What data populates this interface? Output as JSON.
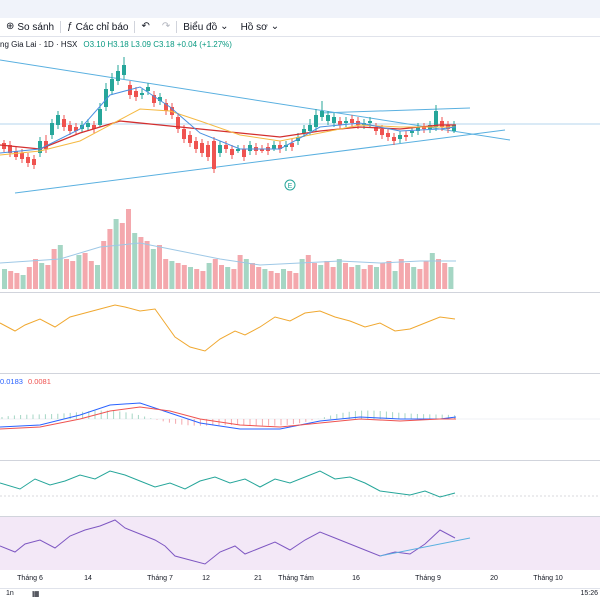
{
  "toolbar": {
    "compare_label": "So sánh",
    "indicators_label": "Các chỉ báo",
    "chart_type_label": "Biểu đồ",
    "profile_label": "Hồ sơ"
  },
  "legend": {
    "symbol": "ng Gia Lai · 1D · HSX",
    "ohlc": "O3.10 H3.18 L3.09 C3.18 +0.04 (+1.27%)"
  },
  "macd_legend": {
    "value1": "0.0183",
    "value2": "0.0081"
  },
  "x_axis_labels": [
    "Tháng 6",
    "14",
    "Tháng 7",
    "12",
    "21",
    "Tháng Tám",
    "16",
    "Tháng 9",
    "20",
    "Tháng 10"
  ],
  "bottom": {
    "left_label": "1n",
    "right_label": "15:26"
  },
  "marker_label": "E",
  "colors": {
    "up": "#26a69a",
    "down": "#ef5350",
    "vol_up": "#a5d6c4",
    "vol_down": "#f4a8ad",
    "ma_red": "#d32f2f",
    "ma_orange": "#f5b942",
    "ma_blue": "#4a90e2",
    "trend": "#5ab0e0",
    "rsi": "#7e57c2",
    "stoch": "#26a69a",
    "cci": "#f0a830"
  }
}
